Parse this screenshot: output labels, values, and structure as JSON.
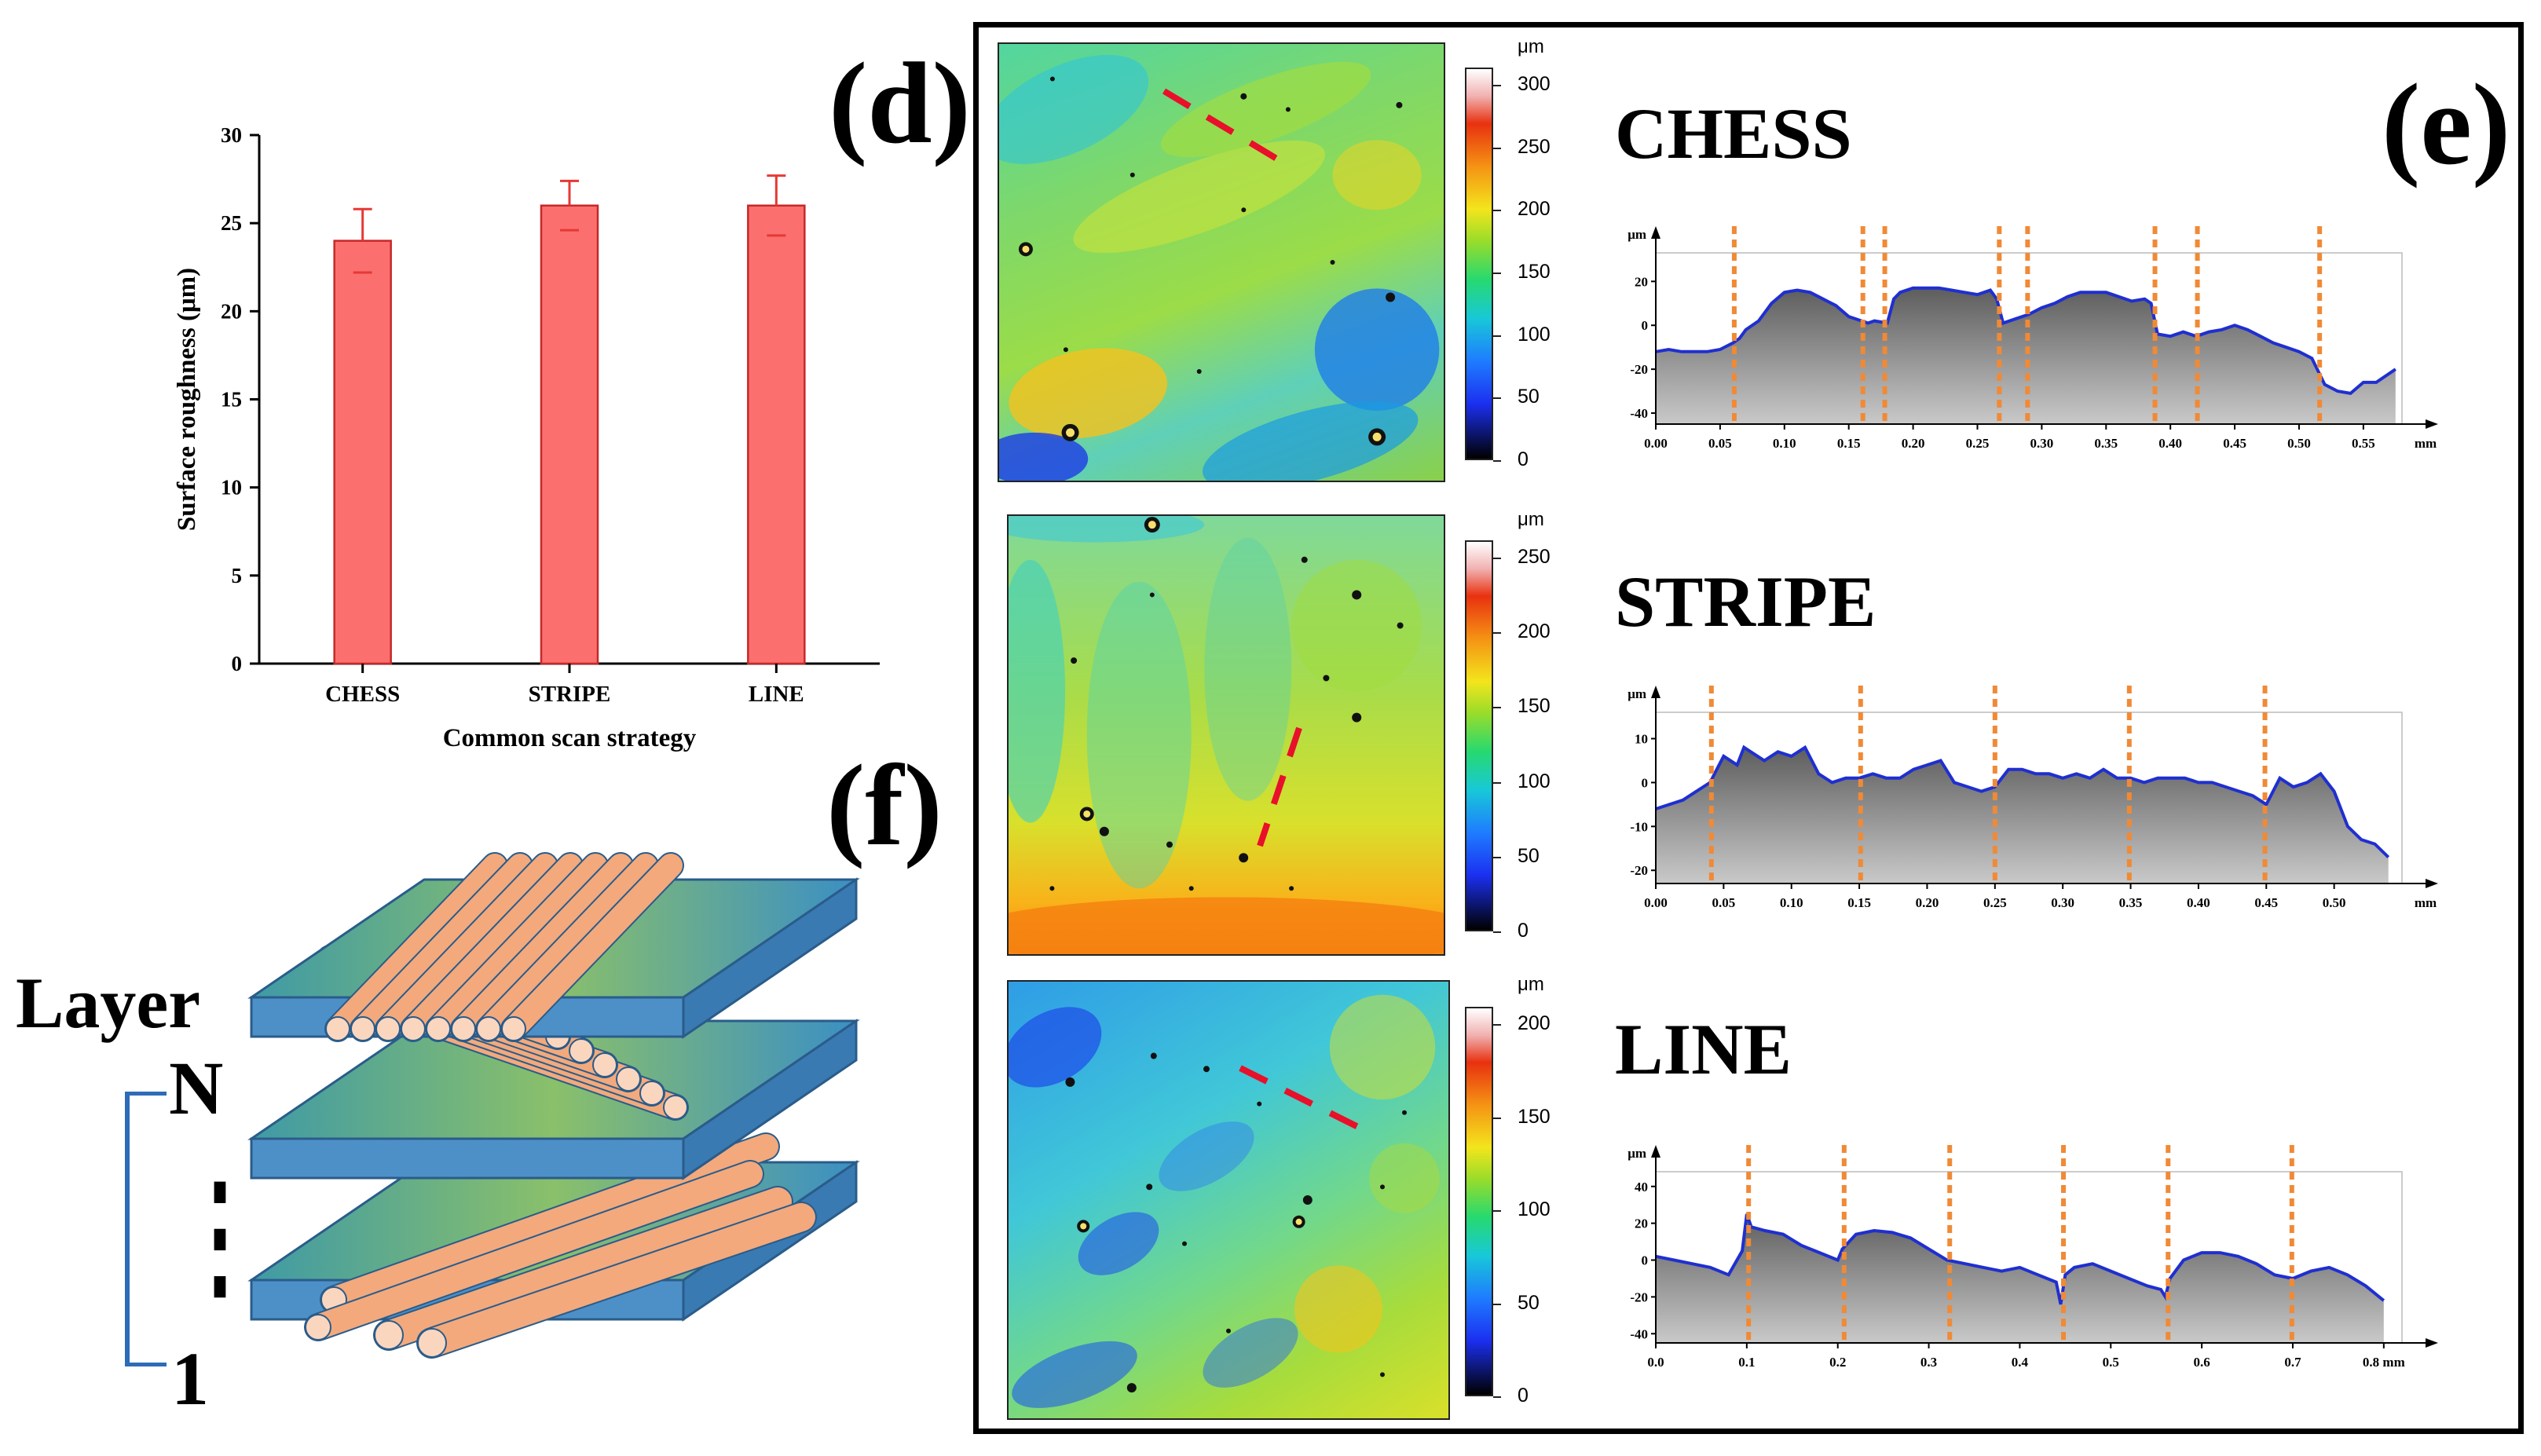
{
  "panel_labels": {
    "d": "(d)",
    "e": "(e)",
    "f": "(f)"
  },
  "colors": {
    "bar_fill": "#fc6f6f",
    "bar_stroke": "#c62828",
    "error_bar": "#e53935",
    "profile_line": "#1f2fd0",
    "profile_fill": "#8e8e8e",
    "marker": "#f08a36",
    "path_dash": "#e8102a"
  },
  "chart_data": [
    {
      "type": "bar",
      "categories": [
        "CHESS",
        "STRIPE",
        "LINE"
      ],
      "values": [
        24,
        26,
        26
      ],
      "errors": [
        1.8,
        1.4,
        1.7
      ],
      "xlabel": "Common scan strategy",
      "ylabel": "Surface roughness (μm)",
      "ylim": [
        0,
        30
      ],
      "yticks": [
        "0",
        "5",
        "10",
        "15",
        "20",
        "25",
        "30"
      ]
    },
    {
      "type": "area",
      "title": "CHESS",
      "unit_y": "μm",
      "unit_x": "mm",
      "xlim": [
        0,
        0.58
      ],
      "ylim": [
        -45,
        33
      ],
      "xticks": [
        "0.00",
        "0.05",
        "0.10",
        "0.15",
        "0.20",
        "0.25",
        "0.30",
        "0.35",
        "0.40",
        "0.45",
        "0.50",
        "0.55"
      ],
      "yticks": [
        "20",
        "0",
        "-20",
        "-40"
      ],
      "x": [
        0,
        0.01,
        0.02,
        0.03,
        0.04,
        0.05,
        0.06,
        0.065,
        0.07,
        0.08,
        0.09,
        0.1,
        0.11,
        0.12,
        0.13,
        0.14,
        0.15,
        0.16,
        0.165,
        0.17,
        0.18,
        0.185,
        0.19,
        0.2,
        0.21,
        0.22,
        0.23,
        0.24,
        0.25,
        0.26,
        0.265,
        0.27,
        0.28,
        0.29,
        0.3,
        0.31,
        0.32,
        0.33,
        0.34,
        0.35,
        0.36,
        0.37,
        0.38,
        0.385,
        0.39,
        0.4,
        0.41,
        0.42,
        0.43,
        0.44,
        0.45,
        0.46,
        0.47,
        0.48,
        0.49,
        0.5,
        0.51,
        0.52,
        0.53,
        0.54,
        0.55,
        0.56,
        0.575
      ],
      "y": [
        -12,
        -11,
        -12,
        -12,
        -12,
        -11,
        -8,
        -6,
        -2,
        2,
        10,
        15,
        16,
        15,
        12,
        9,
        4,
        2,
        1,
        2,
        1,
        12,
        15,
        17,
        17,
        17,
        16,
        15,
        14,
        16,
        12,
        1,
        3,
        5,
        8,
        10,
        13,
        15,
        15,
        15,
        13,
        11,
        12,
        10,
        -4,
        -5,
        -3,
        -5,
        -3,
        -2,
        0,
        -2,
        -5,
        -8,
        -10,
        -12,
        -15,
        -27,
        -30,
        -31,
        -26,
        -26,
        -20
      ],
      "markers": [
        0.061,
        0.161,
        0.178,
        0.267,
        0.289,
        0.388,
        0.421,
        0.516
      ]
    },
    {
      "type": "area",
      "title": "STRIPE",
      "unit_y": "μm",
      "unit_x": "mm",
      "xlim": [
        0,
        0.55
      ],
      "ylim": [
        -23,
        16
      ],
      "xticks": [
        "0.00",
        "0.05",
        "0.10",
        "0.15",
        "0.20",
        "0.25",
        "0.30",
        "0.35",
        "0.40",
        "0.45",
        "0.50"
      ],
      "yticks": [
        "10",
        "0",
        "-10",
        "-20"
      ],
      "x": [
        0,
        0.01,
        0.02,
        0.03,
        0.04,
        0.045,
        0.05,
        0.06,
        0.065,
        0.07,
        0.08,
        0.09,
        0.1,
        0.11,
        0.12,
        0.13,
        0.14,
        0.15,
        0.16,
        0.17,
        0.18,
        0.19,
        0.2,
        0.21,
        0.22,
        0.23,
        0.24,
        0.25,
        0.26,
        0.27,
        0.28,
        0.29,
        0.3,
        0.31,
        0.32,
        0.33,
        0.34,
        0.35,
        0.36,
        0.37,
        0.38,
        0.39,
        0.4,
        0.41,
        0.42,
        0.43,
        0.44,
        0.45,
        0.46,
        0.47,
        0.48,
        0.49,
        0.5,
        0.51,
        0.52,
        0.53,
        0.54
      ],
      "y": [
        -6,
        -5,
        -4,
        -2,
        0,
        3,
        6,
        4,
        8,
        7,
        5,
        7,
        6,
        8,
        2,
        0,
        1,
        1,
        2,
        1,
        1,
        3,
        4,
        5,
        0,
        -1,
        -2,
        -1,
        3,
        3,
        2,
        2,
        1,
        2,
        1,
        3,
        1,
        1,
        0,
        1,
        1,
        1,
        0,
        0,
        -1,
        -2,
        -3,
        -5,
        1,
        -1,
        0,
        2,
        -2,
        -10,
        -13,
        -14,
        -17
      ],
      "markers": [
        0.041,
        0.151,
        0.25,
        0.349,
        0.449
      ]
    },
    {
      "type": "area",
      "title": "LINE",
      "unit_y": "μm",
      "unit_x": "mm",
      "xlim": [
        0,
        0.82
      ],
      "ylim": [
        -45,
        48
      ],
      "xticks": [
        "0.0",
        "0.1",
        "0.2",
        "0.3",
        "0.4",
        "0.5",
        "0.6",
        "0.7",
        "0.8 mm"
      ],
      "yticks": [
        "40",
        "20",
        "0",
        "-20",
        "-40"
      ],
      "x": [
        0,
        0.02,
        0.04,
        0.06,
        0.08,
        0.095,
        0.1,
        0.105,
        0.12,
        0.14,
        0.16,
        0.18,
        0.2,
        0.205,
        0.22,
        0.24,
        0.26,
        0.28,
        0.3,
        0.32,
        0.34,
        0.36,
        0.38,
        0.4,
        0.42,
        0.44,
        0.445,
        0.45,
        0.46,
        0.48,
        0.5,
        0.52,
        0.54,
        0.555,
        0.56,
        0.565,
        0.58,
        0.6,
        0.62,
        0.64,
        0.66,
        0.68,
        0.7,
        0.72,
        0.74,
        0.76,
        0.78,
        0.8
      ],
      "y": [
        2,
        0,
        -2,
        -4,
        -8,
        5,
        25,
        18,
        16,
        14,
        8,
        4,
        0,
        6,
        14,
        16,
        15,
        12,
        6,
        0,
        -2,
        -4,
        -6,
        -4,
        -8,
        -12,
        -24,
        -8,
        -4,
        -2,
        -6,
        -10,
        -14,
        -16,
        -20,
        -10,
        0,
        4,
        4,
        2,
        -2,
        -8,
        -10,
        -6,
        -4,
        -8,
        -14,
        -22
      ],
      "markers": [
        0.102,
        0.207,
        0.323,
        0.448,
        0.563,
        0.699
      ]
    }
  ],
  "colorbars": {
    "unit": "μm",
    "chess": [
      "300",
      "250",
      "200",
      "150",
      "100",
      "50",
      "0"
    ],
    "stripe": [
      "250",
      "200",
      "150",
      "100",
      "50",
      "0"
    ],
    "line": [
      "200",
      "150",
      "100",
      "50",
      "0"
    ]
  },
  "diagram": {
    "layer_label": "Layer",
    "top_label": "N",
    "dots": "⋮",
    "bottom_label": "1"
  }
}
